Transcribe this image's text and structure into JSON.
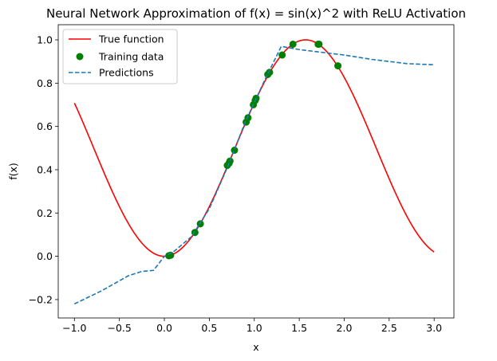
{
  "chart_data": {
    "type": "line",
    "title": "Neural Network Approximation of f(x) = sin(x)^2 with ReLU Activation",
    "xlabel": "x",
    "ylabel": "f(x)",
    "xlim": [
      -1.18,
      3.22
    ],
    "ylim": [
      -0.285,
      1.07
    ],
    "xticks": [
      -1.0,
      -0.5,
      0.0,
      0.5,
      1.0,
      1.5,
      2.0,
      2.5,
      3.0
    ],
    "xtick_labels": [
      "−1.0",
      "−0.5",
      "0.0",
      "0.5",
      "1.0",
      "1.5",
      "2.0",
      "2.5",
      "3.0"
    ],
    "yticks": [
      -0.2,
      0.0,
      0.2,
      0.4,
      0.6,
      0.8,
      1.0
    ],
    "ytick_labels": [
      "−0.2",
      "0.0",
      "0.2",
      "0.4",
      "0.6",
      "0.8",
      "1.0"
    ],
    "grid": false,
    "legend_position": "top-left",
    "series": [
      {
        "name": "True function",
        "kind": "line",
        "style": "solid",
        "color": "#ff0000",
        "function": "sin(x)^2",
        "x_range": [
          -1.0,
          3.0
        ]
      },
      {
        "name": "Training data",
        "kind": "scatter",
        "color": "#008000",
        "points": [
          [
            0.05,
            0.0025
          ],
          [
            0.07,
            0.0049
          ],
          [
            0.34,
            0.11
          ],
          [
            0.4,
            0.15
          ],
          [
            0.7,
            0.42
          ],
          [
            0.72,
            0.43
          ],
          [
            0.73,
            0.44
          ],
          [
            0.78,
            0.49
          ],
          [
            0.91,
            0.62
          ],
          [
            0.93,
            0.64
          ],
          [
            0.99,
            0.7
          ],
          [
            1.01,
            0.72
          ],
          [
            1.02,
            0.73
          ],
          [
            1.15,
            0.84
          ],
          [
            1.17,
            0.85
          ],
          [
            1.31,
            0.93
          ],
          [
            1.43,
            0.98
          ],
          [
            1.71,
            0.98
          ],
          [
            1.72,
            0.98
          ],
          [
            1.93,
            0.88
          ]
        ]
      },
      {
        "name": "Predictions",
        "kind": "line",
        "style": "dashed",
        "color": "#1f77b4",
        "points": [
          [
            -1.0,
            -0.22
          ],
          [
            -0.7,
            -0.16
          ],
          [
            -0.4,
            -0.09
          ],
          [
            -0.25,
            -0.07
          ],
          [
            -0.12,
            -0.065
          ],
          [
            0.0,
            0.0
          ],
          [
            0.1,
            0.02
          ],
          [
            0.3,
            0.09
          ],
          [
            0.5,
            0.22
          ],
          [
            0.7,
            0.41
          ],
          [
            0.9,
            0.62
          ],
          [
            1.1,
            0.8
          ],
          [
            1.3,
            0.97
          ],
          [
            1.5,
            0.955
          ],
          [
            2.0,
            0.93
          ],
          [
            2.3,
            0.91
          ],
          [
            2.7,
            0.89
          ],
          [
            3.0,
            0.885
          ]
        ]
      }
    ]
  }
}
